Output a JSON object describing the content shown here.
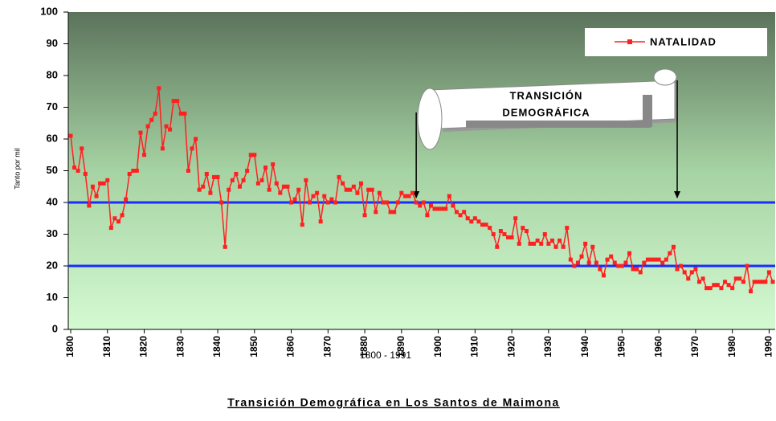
{
  "chart_data": {
    "type": "line",
    "title": "Transición Demográfica en Los Santos de Maimona",
    "xlabel": "1800 - 1991",
    "ylabel": "Tanto por mil",
    "x": [
      1800,
      1801,
      1802,
      1803,
      1804,
      1805,
      1806,
      1807,
      1808,
      1809,
      1810,
      1811,
      1812,
      1813,
      1814,
      1815,
      1816,
      1817,
      1818,
      1819,
      1820,
      1821,
      1822,
      1823,
      1824,
      1825,
      1826,
      1827,
      1828,
      1829,
      1830,
      1831,
      1832,
      1833,
      1834,
      1835,
      1836,
      1837,
      1838,
      1839,
      1840,
      1841,
      1842,
      1843,
      1844,
      1845,
      1846,
      1847,
      1848,
      1849,
      1850,
      1851,
      1852,
      1853,
      1854,
      1855,
      1856,
      1857,
      1858,
      1859,
      1860,
      1861,
      1862,
      1863,
      1864,
      1865,
      1866,
      1867,
      1868,
      1869,
      1870,
      1871,
      1872,
      1873,
      1874,
      1875,
      1876,
      1877,
      1878,
      1879,
      1880,
      1881,
      1882,
      1883,
      1884,
      1885,
      1886,
      1887,
      1888,
      1889,
      1890,
      1891,
      1892,
      1893,
      1894,
      1895,
      1896,
      1897,
      1898,
      1899,
      1900,
      1901,
      1902,
      1903,
      1904,
      1905,
      1906,
      1907,
      1908,
      1909,
      1910,
      1911,
      1912,
      1913,
      1914,
      1915,
      1916,
      1917,
      1918,
      1919,
      1920,
      1921,
      1922,
      1923,
      1924,
      1925,
      1926,
      1927,
      1928,
      1929,
      1930,
      1931,
      1932,
      1933,
      1934,
      1935,
      1936,
      1937,
      1938,
      1939,
      1940,
      1941,
      1942,
      1943,
      1944,
      1945,
      1946,
      1947,
      1948,
      1949,
      1950,
      1951,
      1952,
      1953,
      1954,
      1955,
      1956,
      1957,
      1958,
      1959,
      1960,
      1961,
      1962,
      1963,
      1964,
      1965,
      1966,
      1967,
      1968,
      1969,
      1970,
      1971,
      1972,
      1973,
      1974,
      1975,
      1976,
      1977,
      1978,
      1979,
      1980,
      1981,
      1982,
      1983,
      1984,
      1985,
      1986,
      1987,
      1988,
      1989,
      1990,
      1991
    ],
    "series": [
      {
        "name": "NATALIDAD",
        "color": "#ff2020",
        "values": [
          61,
          51,
          50,
          57,
          49,
          39,
          45,
          42,
          46,
          46,
          47,
          32,
          35,
          34,
          36,
          41,
          49,
          50,
          50,
          62,
          55,
          64,
          66,
          68,
          76,
          57,
          64,
          63,
          72,
          72,
          68,
          68,
          50,
          57,
          60,
          44,
          45,
          49,
          43,
          48,
          48,
          40,
          26,
          44,
          47,
          49,
          45,
          47,
          50,
          55,
          55,
          46,
          47,
          51,
          44,
          52,
          46,
          43,
          45,
          45,
          40,
          41,
          44,
          33,
          47,
          40,
          42,
          43,
          34,
          42,
          40,
          41,
          40,
          48,
          46,
          44,
          44,
          45,
          43,
          46,
          36,
          44,
          44,
          37,
          43,
          40,
          40,
          37,
          37,
          40,
          43,
          42,
          42,
          43,
          40,
          39,
          40,
          36,
          39,
          38,
          38,
          38,
          38,
          42,
          39,
          37,
          36,
          37,
          35,
          34,
          35,
          34,
          33,
          33,
          32,
          30,
          26,
          31,
          30,
          29,
          29,
          35,
          27,
          32,
          31,
          27,
          27,
          28,
          27,
          30,
          27,
          28,
          26,
          28,
          26,
          32,
          22,
          20,
          21,
          23,
          27,
          21,
          26,
          21,
          19,
          17,
          22,
          23,
          21,
          20,
          20,
          21,
          24,
          19,
          19,
          18,
          21,
          22,
          22,
          22,
          22,
          21,
          22,
          24,
          26,
          19,
          20,
          18,
          16,
          18,
          19,
          15,
          16,
          13,
          13,
          14,
          14,
          13,
          15,
          14,
          13,
          16,
          16,
          15,
          20,
          12,
          15,
          15,
          15,
          15,
          18,
          15
        ]
      }
    ],
    "xlim": [
      1800,
      1991
    ],
    "xticks": [
      1800,
      1810,
      1820,
      1830,
      1840,
      1850,
      1860,
      1870,
      1880,
      1890,
      1900,
      1910,
      1920,
      1930,
      1940,
      1950,
      1960,
      1970,
      1980,
      1990
    ],
    "ylim": [
      0,
      100
    ],
    "yticks": [
      0,
      10,
      20,
      30,
      40,
      50,
      60,
      70,
      80,
      90,
      100
    ],
    "reference_lines": {
      "values": [
        40,
        20
      ],
      "color": "#1a2cff"
    },
    "annotation": {
      "lines": [
        "TRANSICIÓN",
        "DEMOGRÁFICA"
      ],
      "arrow_x": [
        1894,
        1965
      ]
    },
    "legend": "top-right"
  }
}
